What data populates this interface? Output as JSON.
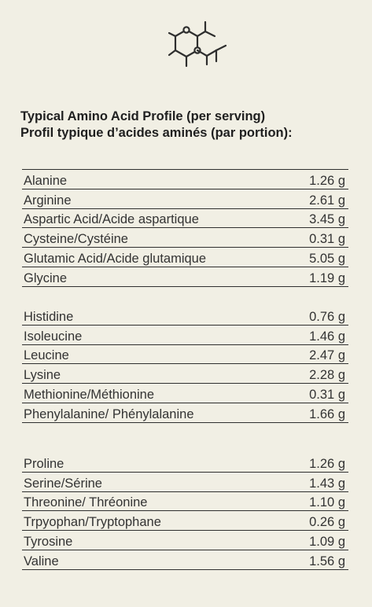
{
  "title": {
    "en": "Typical Amino Acid Profile (per serving)",
    "fr": "Profil typique d’acides aminés (par portion):"
  },
  "icon": "molecule-icon",
  "colors": {
    "background": "#f1efe4",
    "text": "#2b2b2b",
    "rule": "#2f2f2f"
  },
  "groups": [
    {
      "rows": [
        {
          "name": "Alanine",
          "value": "1.26 g"
        },
        {
          "name": "Arginine",
          "value": "2.61 g"
        },
        {
          "name": "Aspartic Acid/Acide aspartique",
          "value": "3.45 g"
        },
        {
          "name": "Cysteine/Cystéine",
          "value": "0.31 g"
        },
        {
          "name": "Glutamic Acid/Acide glutamique",
          "value": "5.05 g"
        },
        {
          "name": "Glycine",
          "value": "1.19 g"
        }
      ]
    },
    {
      "rows": [
        {
          "name": "Histidine",
          "value": "0.76 g"
        },
        {
          "name": "Isoleucine",
          "value": "1.46 g"
        },
        {
          "name": "Leucine",
          "value": "2.47 g"
        },
        {
          "name": "Lysine",
          "value": "2.28 g"
        },
        {
          "name": "Methionine/Méthionine",
          "value": "0.31 g"
        },
        {
          "name": "Phenylalanine/ Phénylalanine",
          "value": "1.66 g"
        }
      ]
    },
    {
      "rows": [
        {
          "name": "Proline",
          "value": "1.26 g"
        },
        {
          "name": "Serine/Sérine",
          "value": "1.43 g"
        },
        {
          "name": "Threonine/ Thréonine",
          "value": "1.10 g"
        },
        {
          "name": "Trpyophan/Tryptophane",
          "value": "0.26 g"
        },
        {
          "name": "Tyrosine",
          "value": "1.09 g"
        },
        {
          "name": "Valine",
          "value": "1.56 g"
        }
      ]
    }
  ]
}
